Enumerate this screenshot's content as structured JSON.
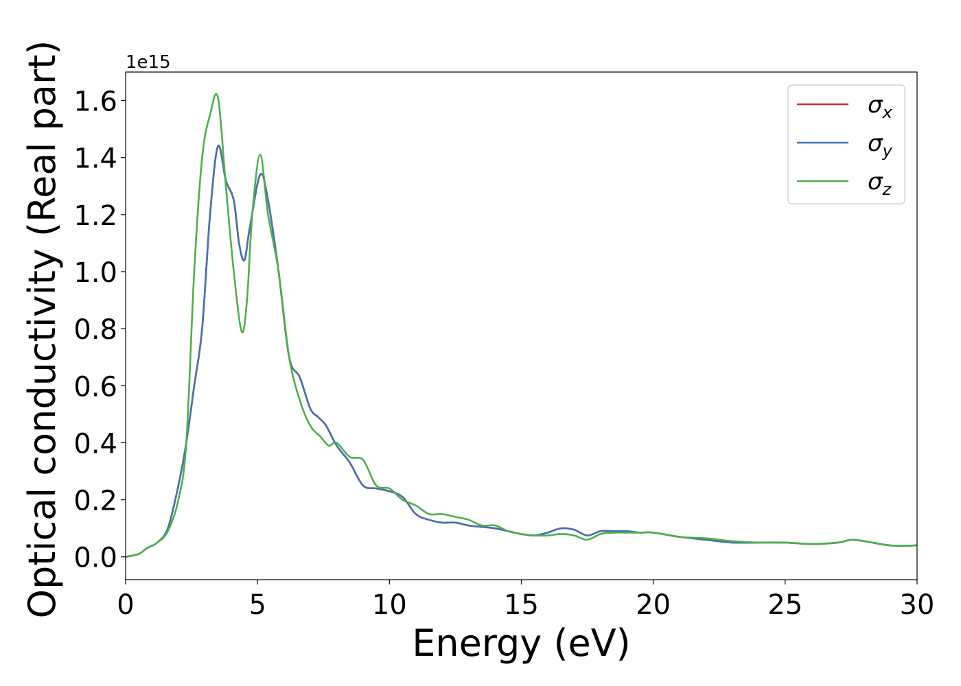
{
  "chart_data": {
    "type": "line",
    "title": "",
    "xlabel": "Energy (eV)",
    "ylabel": "Optical conductivity (Real part)",
    "y_offset_label": "1e15",
    "xlim": [
      0,
      30
    ],
    "ylim": [
      -0.08,
      1.7
    ],
    "xticks": [
      0,
      5,
      10,
      15,
      20,
      25,
      30
    ],
    "xtick_labels": [
      "0",
      "5",
      "10",
      "15",
      "20",
      "25",
      "30"
    ],
    "yticks": [
      0.0,
      0.2,
      0.4,
      0.6,
      0.8,
      1.0,
      1.2,
      1.4,
      1.6
    ],
    "ytick_labels": [
      "0.0",
      "0.2",
      "0.4",
      "0.6",
      "0.8",
      "1.0",
      "1.2",
      "1.4",
      "1.6"
    ],
    "grid": false,
    "legend_position": "top-right",
    "series": [
      {
        "name": "σx",
        "legend_base": "σ",
        "legend_sub": "x",
        "color": "#d62728",
        "x": [
          0,
          0.5,
          0.8,
          1.2,
          1.6,
          2.0,
          2.3,
          2.6,
          2.9,
          3.2,
          3.5,
          3.8,
          4.1,
          4.3,
          4.5,
          4.7,
          5.1,
          5.4,
          5.8,
          6.2,
          6.6,
          7.0,
          7.3,
          7.6,
          8.0,
          8.5,
          9.0,
          9.5,
          10.0,
          10.5,
          11.0,
          11.5,
          12.0,
          12.5,
          13.0,
          13.5,
          14.0,
          14.5,
          15.0,
          15.5,
          16.0,
          16.5,
          17.0,
          17.5,
          18.0,
          18.5,
          19.0,
          19.5,
          20.0,
          21.0,
          22.0,
          23.0,
          24.0,
          25.0,
          26.0,
          27.0,
          27.5,
          28.0,
          29.0,
          30.0
        ],
        "values": [
          0.0,
          0.01,
          0.03,
          0.05,
          0.1,
          0.25,
          0.4,
          0.6,
          0.8,
          1.2,
          1.44,
          1.32,
          1.25,
          1.1,
          1.04,
          1.15,
          1.34,
          1.25,
          1.0,
          0.7,
          0.63,
          0.52,
          0.49,
          0.46,
          0.39,
          0.33,
          0.25,
          0.24,
          0.23,
          0.21,
          0.15,
          0.13,
          0.12,
          0.12,
          0.11,
          0.105,
          0.1,
          0.09,
          0.08,
          0.075,
          0.085,
          0.1,
          0.095,
          0.075,
          0.09,
          0.09,
          0.09,
          0.085,
          0.085,
          0.07,
          0.06,
          0.05,
          0.05,
          0.05,
          0.045,
          0.05,
          0.06,
          0.055,
          0.04,
          0.04
        ]
      },
      {
        "name": "σy",
        "legend_base": "σ",
        "legend_sub": "y",
        "color": "#4472b0",
        "x": [
          0,
          0.5,
          0.8,
          1.2,
          1.6,
          2.0,
          2.3,
          2.6,
          2.9,
          3.2,
          3.5,
          3.8,
          4.1,
          4.3,
          4.5,
          4.7,
          5.1,
          5.4,
          5.8,
          6.2,
          6.6,
          7.0,
          7.3,
          7.6,
          8.0,
          8.5,
          9.0,
          9.5,
          10.0,
          10.5,
          11.0,
          11.5,
          12.0,
          12.5,
          13.0,
          13.5,
          14.0,
          14.5,
          15.0,
          15.5,
          16.0,
          16.5,
          17.0,
          17.5,
          18.0,
          18.5,
          19.0,
          19.5,
          20.0,
          21.0,
          22.0,
          23.0,
          24.0,
          25.0,
          26.0,
          27.0,
          27.5,
          28.0,
          29.0,
          30.0
        ],
        "values": [
          0.0,
          0.01,
          0.03,
          0.05,
          0.1,
          0.25,
          0.4,
          0.6,
          0.8,
          1.2,
          1.44,
          1.32,
          1.25,
          1.1,
          1.04,
          1.15,
          1.34,
          1.25,
          1.0,
          0.7,
          0.63,
          0.52,
          0.49,
          0.46,
          0.39,
          0.33,
          0.25,
          0.24,
          0.23,
          0.21,
          0.15,
          0.13,
          0.12,
          0.12,
          0.11,
          0.105,
          0.1,
          0.09,
          0.08,
          0.075,
          0.085,
          0.1,
          0.095,
          0.075,
          0.09,
          0.09,
          0.09,
          0.085,
          0.085,
          0.07,
          0.06,
          0.05,
          0.05,
          0.05,
          0.045,
          0.05,
          0.06,
          0.055,
          0.04,
          0.04
        ]
      },
      {
        "name": "σz",
        "legend_base": "σ",
        "legend_sub": "z",
        "color": "#4daf4a",
        "x": [
          0,
          0.5,
          0.8,
          1.2,
          1.6,
          2.0,
          2.3,
          2.6,
          2.9,
          3.2,
          3.5,
          3.8,
          4.1,
          4.4,
          4.6,
          4.8,
          5.1,
          5.4,
          5.8,
          6.2,
          6.6,
          7.0,
          7.4,
          7.7,
          8.0,
          8.5,
          9.0,
          9.5,
          10.0,
          10.5,
          11.0,
          11.5,
          12.0,
          12.5,
          13.0,
          13.5,
          14.0,
          14.5,
          15.0,
          15.5,
          16.0,
          16.5,
          17.0,
          17.5,
          18.0,
          18.5,
          19.0,
          19.5,
          20.0,
          21.0,
          22.0,
          23.0,
          24.0,
          25.0,
          26.0,
          27.0,
          27.5,
          28.0,
          29.0,
          30.0
        ],
        "values": [
          0.0,
          0.01,
          0.03,
          0.05,
          0.09,
          0.2,
          0.4,
          1.0,
          1.4,
          1.55,
          1.61,
          1.3,
          1.0,
          0.79,
          0.9,
          1.2,
          1.41,
          1.2,
          1.0,
          0.7,
          0.55,
          0.46,
          0.42,
          0.39,
          0.4,
          0.35,
          0.34,
          0.25,
          0.24,
          0.2,
          0.18,
          0.15,
          0.15,
          0.14,
          0.13,
          0.11,
          0.11,
          0.09,
          0.08,
          0.075,
          0.075,
          0.08,
          0.075,
          0.06,
          0.08,
          0.085,
          0.085,
          0.085,
          0.085,
          0.07,
          0.065,
          0.055,
          0.05,
          0.05,
          0.045,
          0.05,
          0.06,
          0.055,
          0.04,
          0.04
        ]
      }
    ]
  }
}
